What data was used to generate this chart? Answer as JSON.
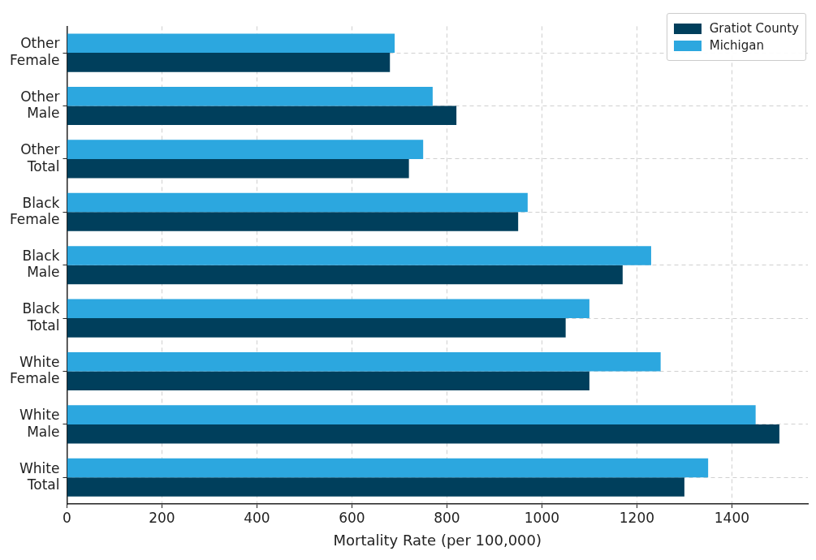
{
  "chart_data": {
    "type": "bar",
    "orientation": "horizontal",
    "xlabel": "Mortality Rate (per 100,000)",
    "categories": [
      "Other Female",
      "Other Male",
      "Other Total",
      "Black Female",
      "Black Male",
      "Black Total",
      "White Female",
      "White Male",
      "White Total"
    ],
    "series": [
      {
        "name": "Gratiot County",
        "color": "#003f5c",
        "values": [
          680,
          820,
          720,
          950,
          1170,
          1050,
          1100,
          1500,
          1300
        ]
      },
      {
        "name": "Michigan",
        "color": "#2ca7df",
        "values": [
          690,
          770,
          750,
          970,
          1230,
          1100,
          1250,
          1450,
          1350
        ]
      }
    ],
    "xlim": [
      0,
      1560
    ],
    "xticks": [
      0,
      200,
      400,
      600,
      800,
      1000,
      1200,
      1400
    ],
    "grid": true,
    "legend": "top right"
  }
}
